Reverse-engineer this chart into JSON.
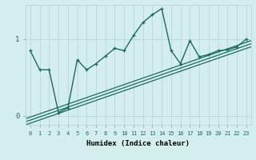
{
  "title": "",
  "xlabel": "Humidex (Indice chaleur)",
  "bg_color": "#d4eeed",
  "grid_color": "#b8d8d5",
  "line_color": "#1a6b5e",
  "xlim": [
    -0.5,
    23.5
  ],
  "ylim": [
    -0.12,
    1.45
  ],
  "ytick_positions": [
    0,
    1
  ],
  "ytick_labels": [
    "0",
    "1"
  ],
  "main_line_x": [
    0,
    1,
    2,
    3,
    4,
    5,
    6,
    7,
    8,
    9,
    10,
    11,
    12,
    13,
    14,
    15,
    16,
    17,
    18,
    19,
    20,
    21,
    22,
    23
  ],
  "main_line_y": [
    0.85,
    0.6,
    0.6,
    0.04,
    0.1,
    0.73,
    0.6,
    0.68,
    0.78,
    0.88,
    0.85,
    1.05,
    1.22,
    1.32,
    1.4,
    0.85,
    0.68,
    0.98,
    0.77,
    0.8,
    0.85,
    0.86,
    0.9,
    1.0
  ],
  "band_lines": [
    {
      "start": -0.12,
      "end": 0.9
    },
    {
      "start": -0.08,
      "end": 0.94
    },
    {
      "start": -0.04,
      "end": 0.98
    }
  ]
}
